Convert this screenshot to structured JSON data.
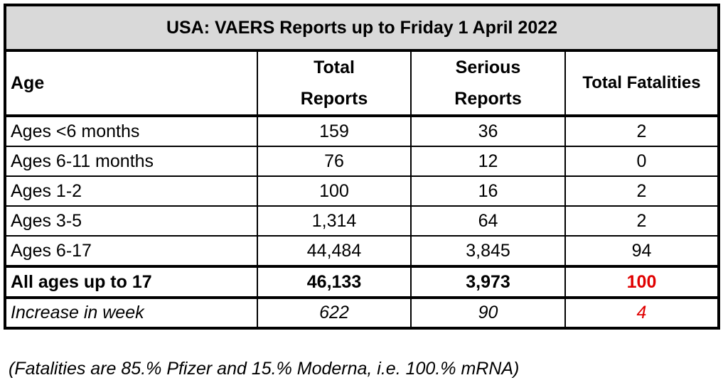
{
  "title": "USA: VAERS Reports up to Friday 1 April 2022",
  "table": {
    "header": [
      "Age",
      "Total Reports",
      "Serious Reports",
      "Total Fatalities"
    ],
    "rows": [
      [
        "Ages <6 months",
        "159",
        "36",
        "2"
      ],
      [
        "Ages 6-11 months",
        "76",
        "12",
        "0"
      ],
      [
        "Ages 1-2",
        "100",
        "16",
        "2"
      ],
      [
        "Ages 3-5",
        "1,314",
        "64",
        "2"
      ],
      [
        "Ages 6-17",
        "44,484",
        "3,845",
        "94"
      ]
    ],
    "total_row": [
      "All ages up to 17",
      "46,133",
      "3,973",
      "100"
    ],
    "increase_row": [
      "Increase in week",
      "622",
      "90",
      "4"
    ]
  },
  "footnote": "(Fatalities are 85.% Pfizer and 15.% Moderna, i.e.  100.% mRNA)"
}
